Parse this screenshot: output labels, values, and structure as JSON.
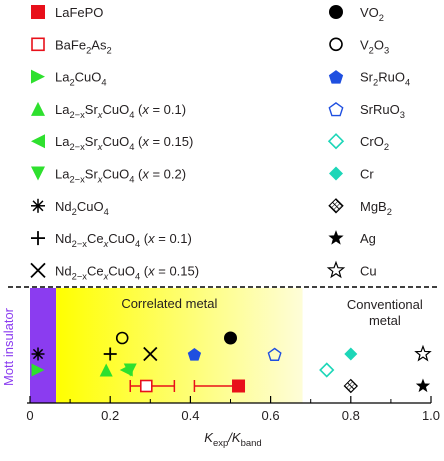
{
  "chart_data": {
    "type": "scatter",
    "xlabel_main": "K",
    "xlabel_sub1": "exp",
    "xlabel_mid": "/K",
    "xlabel_sub2": "band",
    "xlim": [
      0,
      1.0
    ],
    "xticks": [
      "0",
      "0.2",
      "0.4",
      "0.6",
      "0.8",
      "1.0"
    ],
    "xtick_values": [
      0,
      0.2,
      0.4,
      0.6,
      0.8,
      1.0
    ],
    "regions": [
      {
        "name": "Mott insulator",
        "label": "Mott insulator",
        "from": 0,
        "to": 0.065,
        "color": "#8b3cf0"
      },
      {
        "name": "Correlated metal",
        "label": "Correlated metal",
        "from": 0.065,
        "to": 0.68,
        "color_start": "#ffff00",
        "color_end": "#fefdd8"
      },
      {
        "name": "Conventional metal",
        "label_line1": "Conventional",
        "label_line2": "metal",
        "from": 0.68,
        "to": 1.0,
        "color": "#ffffff"
      }
    ],
    "legend": [
      {
        "segments": [
          {
            "t": "LaFePO"
          }
        ],
        "marker": "square-filled",
        "color": "#e8101a"
      },
      {
        "segments": [
          {
            "t": "BaFe"
          },
          {
            "t": "2",
            "s": "sub"
          },
          {
            "t": "As"
          },
          {
            "t": "2",
            "s": "sub"
          }
        ],
        "marker": "square-open",
        "color": "#e8101a"
      },
      {
        "segments": [
          {
            "t": "La"
          },
          {
            "t": "2",
            "s": "sub"
          },
          {
            "t": "CuO"
          },
          {
            "t": "4",
            "s": "sub"
          }
        ],
        "marker": "tri-right",
        "color": "#2ee02e"
      },
      {
        "segments": [
          {
            "t": "La"
          },
          {
            "t": "2−x",
            "s": "sub"
          },
          {
            "t": "Sr"
          },
          {
            "t": "x",
            "s": "subi"
          },
          {
            "t": "CuO"
          },
          {
            "t": "4",
            "s": "sub"
          },
          {
            "t": " ("
          },
          {
            "t": "x",
            "s": "i"
          },
          {
            "t": " = 0.1)"
          }
        ],
        "marker": "tri-up",
        "color": "#2ee02e"
      },
      {
        "segments": [
          {
            "t": "La"
          },
          {
            "t": "2−x",
            "s": "sub"
          },
          {
            "t": "Sr"
          },
          {
            "t": "x",
            "s": "subi"
          },
          {
            "t": "CuO"
          },
          {
            "t": "4",
            "s": "sub"
          },
          {
            "t": " ("
          },
          {
            "t": "x",
            "s": "i"
          },
          {
            "t": " = 0.15)"
          }
        ],
        "marker": "tri-left",
        "color": "#2ee02e"
      },
      {
        "segments": [
          {
            "t": "La"
          },
          {
            "t": "2−x",
            "s": "sub"
          },
          {
            "t": "Sr"
          },
          {
            "t": "x",
            "s": "subi"
          },
          {
            "t": "CuO"
          },
          {
            "t": "4",
            "s": "sub"
          },
          {
            "t": " ("
          },
          {
            "t": "x",
            "s": "i"
          },
          {
            "t": " = 0.2)"
          }
        ],
        "marker": "tri-down",
        "color": "#2ee02e"
      },
      {
        "segments": [
          {
            "t": "Nd"
          },
          {
            "t": "2",
            "s": "sub"
          },
          {
            "t": "CuO"
          },
          {
            "t": "4",
            "s": "sub"
          }
        ],
        "marker": "asterisk",
        "color": "#000000"
      },
      {
        "segments": [
          {
            "t": "Nd"
          },
          {
            "t": "2−x",
            "s": "sub"
          },
          {
            "t": "Ce"
          },
          {
            "t": "x",
            "s": "subi"
          },
          {
            "t": "CuO"
          },
          {
            "t": "4",
            "s": "sub"
          },
          {
            "t": " ("
          },
          {
            "t": "x",
            "s": "i"
          },
          {
            "t": " = 0.1)"
          }
        ],
        "marker": "plus",
        "color": "#000000"
      },
      {
        "segments": [
          {
            "t": "Nd"
          },
          {
            "t": "2−x",
            "s": "sub"
          },
          {
            "t": "Ce"
          },
          {
            "t": "x",
            "s": "subi"
          },
          {
            "t": "CuO"
          },
          {
            "t": "4",
            "s": "sub"
          },
          {
            "t": " ("
          },
          {
            "t": "x",
            "s": "i"
          },
          {
            "t": " = 0.15)"
          }
        ],
        "marker": "cross",
        "color": "#000000"
      },
      {
        "segments": [
          {
            "t": "VO"
          },
          {
            "t": "2",
            "s": "sub"
          }
        ],
        "marker": "circle-filled",
        "color": "#000000"
      },
      {
        "segments": [
          {
            "t": "V"
          },
          {
            "t": "2",
            "s": "sub"
          },
          {
            "t": "O"
          },
          {
            "t": "3",
            "s": "sub"
          }
        ],
        "marker": "circle-open",
        "color": "#000000"
      },
      {
        "segments": [
          {
            "t": "Sr"
          },
          {
            "t": "2",
            "s": "sub"
          },
          {
            "t": "RuO"
          },
          {
            "t": "4",
            "s": "sub"
          }
        ],
        "marker": "pentagon-filled",
        "color": "#1f4fe0"
      },
      {
        "segments": [
          {
            "t": "SrRuO"
          },
          {
            "t": "3",
            "s": "sub"
          }
        ],
        "marker": "pentagon-open",
        "color": "#1f4fe0"
      },
      {
        "segments": [
          {
            "t": "CrO"
          },
          {
            "t": "2",
            "s": "sub"
          }
        ],
        "marker": "diamond-open",
        "color": "#1dd6b8"
      },
      {
        "segments": [
          {
            "t": "Cr"
          }
        ],
        "marker": "diamond-filled",
        "color": "#1dd6b8"
      },
      {
        "segments": [
          {
            "t": "MgB"
          },
          {
            "t": "2",
            "s": "sub"
          }
        ],
        "marker": "hatched",
        "color": "#000000"
      },
      {
        "segments": [
          {
            "t": "Ag"
          }
        ],
        "marker": "star-filled",
        "color": "#000000"
      },
      {
        "segments": [
          {
            "t": "Cu"
          }
        ],
        "marker": "star-open",
        "color": "#000000"
      }
    ],
    "points": [
      {
        "name": "LaFePO",
        "x": 0.52,
        "xerr_low": 0.41,
        "xerr_high": 0.52,
        "row": 3,
        "marker": "square-filled",
        "color": "#e8101a"
      },
      {
        "name": "BaFe2As2",
        "x": 0.29,
        "xerr_low": 0.25,
        "xerr_high": 0.36,
        "row": 3,
        "marker": "square-open",
        "color": "#e8101a"
      },
      {
        "name": "La2CuO4",
        "x": 0.02,
        "row": 2,
        "marker": "tri-right",
        "color": "#2ee02e"
      },
      {
        "name": "La2-xSrxCuO4 (x = 0.1)",
        "x": 0.19,
        "row": 2,
        "marker": "tri-up",
        "color": "#2ee02e"
      },
      {
        "name": "La2-xSrxCuO4 (x = 0.15)",
        "x": 0.24,
        "row": 2,
        "marker": "tri-left",
        "color": "#2ee02e"
      },
      {
        "name": "La2-xSrxCuO4 (x = 0.2)",
        "x": 0.25,
        "row": 2,
        "marker": "tri-down",
        "color": "#2ee02e"
      },
      {
        "name": "Nd2CuO4",
        "x": 0.02,
        "row": 1,
        "marker": "asterisk",
        "color": "#000000"
      },
      {
        "name": "Nd2-xCexCuO4 (x = 0.1)",
        "x": 0.2,
        "row": 1,
        "marker": "plus",
        "color": "#000000"
      },
      {
        "name": "Nd2-xCexCuO4 (x = 0.15)",
        "x": 0.3,
        "row": 1,
        "marker": "cross",
        "color": "#000000"
      },
      {
        "name": "VO2",
        "x": 0.5,
        "row": 0,
        "marker": "circle-filled",
        "color": "#000000"
      },
      {
        "name": "V2O3",
        "x": 0.23,
        "row": 0,
        "marker": "circle-open",
        "color": "#000000"
      },
      {
        "name": "Sr2RuO4",
        "x": 0.41,
        "row": 1,
        "marker": "pentagon-filled",
        "color": "#1f4fe0"
      },
      {
        "name": "SrRuO3",
        "x": 0.61,
        "row": 1,
        "marker": "pentagon-open",
        "color": "#1f4fe0"
      },
      {
        "name": "CrO2",
        "x": 0.74,
        "row": 2,
        "marker": "diamond-open",
        "color": "#1dd6b8"
      },
      {
        "name": "Cr",
        "x": 0.8,
        "row": 1,
        "marker": "diamond-filled",
        "color": "#1dd6b8"
      },
      {
        "name": "MgB2",
        "x": 0.8,
        "row": 3,
        "marker": "hatched",
        "color": "#000000"
      },
      {
        "name": "Ag",
        "x": 0.98,
        "row": 3,
        "marker": "star-filled",
        "color": "#000000"
      },
      {
        "name": "Cu",
        "x": 0.98,
        "row": 1,
        "marker": "star-open",
        "color": "#000000"
      }
    ]
  }
}
